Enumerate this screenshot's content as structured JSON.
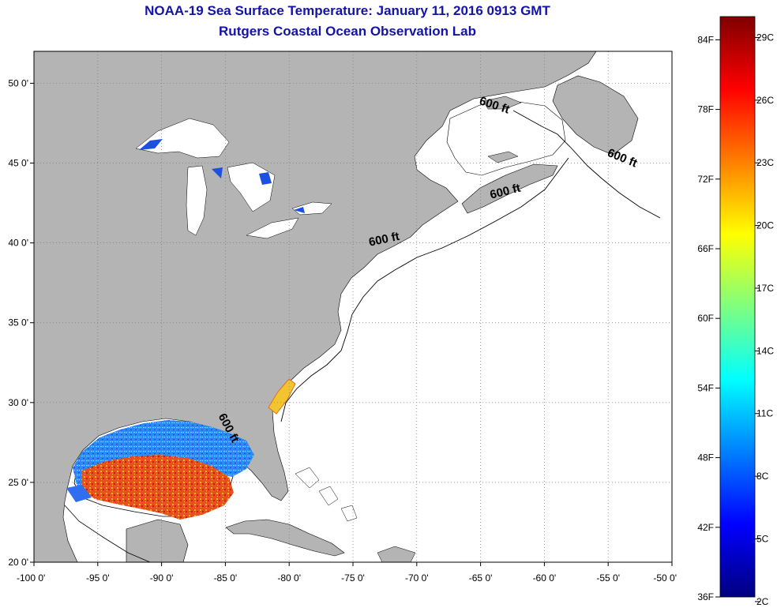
{
  "title": {
    "line1": "NOAA-19 Sea Surface Temperature:  January 11, 2016 0913 GMT",
    "line2": "Rutgers Coastal Ocean Observation Lab"
  },
  "map": {
    "lon_range": [
      -100,
      -50
    ],
    "lat_range": [
      20,
      52
    ],
    "land_color": "#b4b4b4",
    "ocean_color": "#ffffff",
    "grid": "dotted",
    "lon_ticks": [
      {
        "value": -100,
        "label": "-100 0'"
      },
      {
        "value": -95,
        "label": "-95 0'"
      },
      {
        "value": -90,
        "label": "-90 0'"
      },
      {
        "value": -85,
        "label": "-85 0'"
      },
      {
        "value": -80,
        "label": "-80 0'"
      },
      {
        "value": -75,
        "label": "-75 0'"
      },
      {
        "value": -70,
        "label": "-70 0'"
      },
      {
        "value": -65,
        "label": "-65 0'"
      },
      {
        "value": -60,
        "label": "-60 0'"
      },
      {
        "value": -55,
        "label": "-55 0'"
      },
      {
        "value": -50,
        "label": "-50 0'"
      }
    ],
    "lat_ticks": [
      {
        "value": 20,
        "label": "20 0'"
      },
      {
        "value": 25,
        "label": "25 0'"
      },
      {
        "value": 30,
        "label": "30 0'"
      },
      {
        "value": 35,
        "label": "35 0'"
      },
      {
        "value": 40,
        "label": "40 0'"
      },
      {
        "value": 45,
        "label": "45 0'"
      },
      {
        "value": 50,
        "label": "50 0'"
      }
    ],
    "isobath_labels": [
      {
        "text": "600 ft",
        "lon": -64,
        "lat": 48.4,
        "angle": 18
      },
      {
        "text": "600 ft",
        "lon": -54,
        "lat": 45.1,
        "angle": 22
      },
      {
        "text": "600 ft",
        "lon": -63,
        "lat": 43.0,
        "angle": -14
      },
      {
        "text": "600 ft",
        "lon": -72.5,
        "lat": 40.0,
        "angle": -12
      },
      {
        "text": "600 ft",
        "lon": -85,
        "lat": 28.3,
        "angle": 62
      }
    ]
  },
  "colorbar": {
    "min_f": 36,
    "max_f": 86,
    "colormap": "jet",
    "labels_f": [
      {
        "value": 36,
        "label": "36F"
      },
      {
        "value": 42,
        "label": "42F"
      },
      {
        "value": 48,
        "label": "48F"
      },
      {
        "value": 54,
        "label": "54F"
      },
      {
        "value": 60,
        "label": "60F"
      },
      {
        "value": 66,
        "label": "66F"
      },
      {
        "value": 72,
        "label": "72F"
      },
      {
        "value": 78,
        "label": "78F"
      },
      {
        "value": 84,
        "label": "84F"
      }
    ],
    "labels_c": [
      {
        "value": 2,
        "label": "2C"
      },
      {
        "value": 5,
        "label": "5C"
      },
      {
        "value": 8,
        "label": "8C"
      },
      {
        "value": 11,
        "label": "11C"
      },
      {
        "value": 14,
        "label": "14C"
      },
      {
        "value": 17,
        "label": "17C"
      },
      {
        "value": 20,
        "label": "20C"
      },
      {
        "value": 23,
        "label": "23C"
      },
      {
        "value": 26,
        "label": "26C"
      },
      {
        "value": 29,
        "label": "29C"
      }
    ]
  }
}
